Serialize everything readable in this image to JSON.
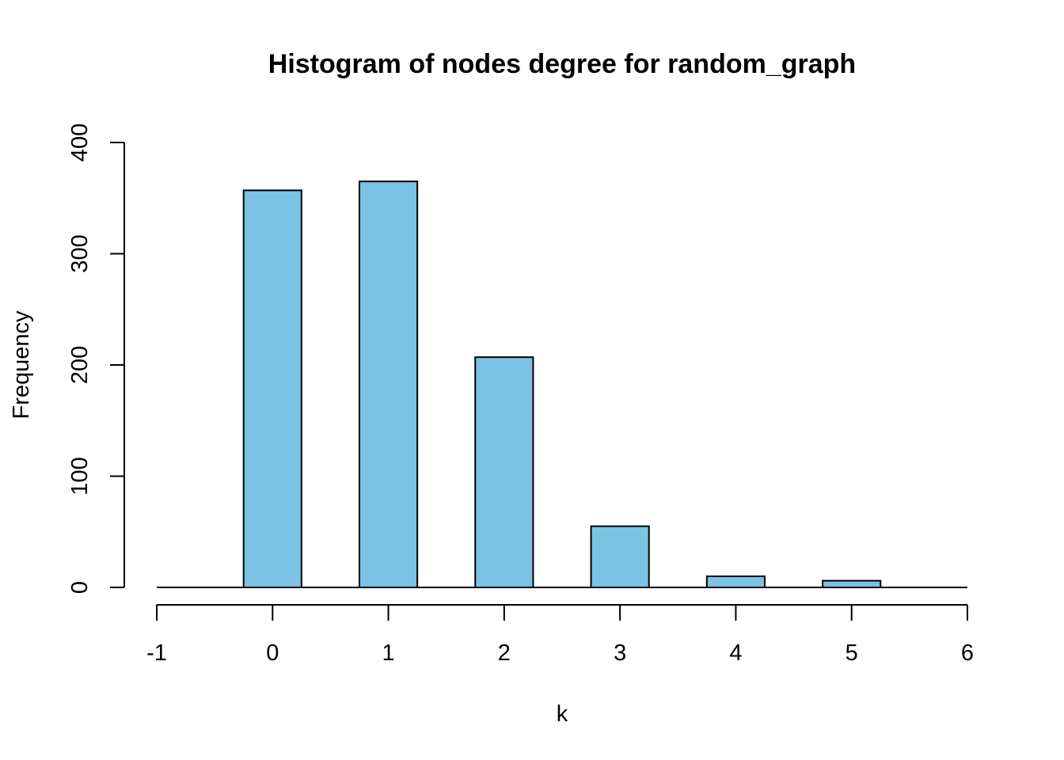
{
  "chart_data": {
    "type": "bar",
    "title": "Histogram of nodes degree for random_graph",
    "xlabel": "k",
    "ylabel": "Frequency",
    "categories": [
      "0",
      "1",
      "2",
      "3",
      "4",
      "5"
    ],
    "bins": [
      {
        "x": 0,
        "value": 357
      },
      {
        "x": 1,
        "value": 365
      },
      {
        "x": 2,
        "value": 207
      },
      {
        "x": 3,
        "value": 55
      },
      {
        "x": 4,
        "value": 10
      },
      {
        "x": 5,
        "value": 6
      }
    ],
    "bar_width": 0.5,
    "xlim": [
      -1,
      6
    ],
    "ylim": [
      0,
      400
    ],
    "x_ticks": [
      "-1",
      "0",
      "1",
      "2",
      "3",
      "4",
      "5",
      "6"
    ],
    "y_ticks": [
      "0",
      "100",
      "200",
      "300",
      "400"
    ],
    "bar_color": "#7AC3E5",
    "edge_color": "#000000",
    "grid": false,
    "legend": "none"
  }
}
